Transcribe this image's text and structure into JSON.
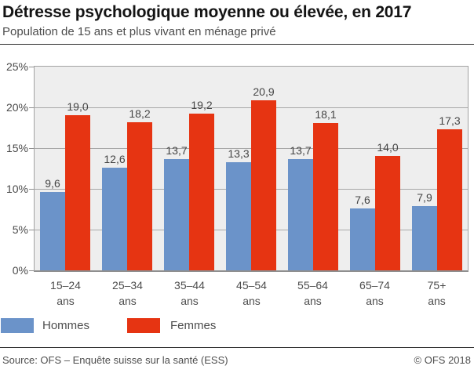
{
  "header": {
    "title": "Détresse psychologique moyenne ou élevée, en 2017",
    "subtitle": "Population de 15 ans et plus vivant en ménage privé"
  },
  "chart_data": {
    "type": "bar",
    "title": "Détresse psychologique moyenne ou élevée, en 2017",
    "subtitle": "Population de 15 ans et plus vivant en ménage privé",
    "categories": [
      "15–24",
      "25–34",
      "35–44",
      "45–54",
      "55–64",
      "65–74",
      "75+"
    ],
    "category_unit": "ans",
    "series": [
      {
        "name": "Hommes",
        "color": "#6b93c9",
        "values": [
          9.6,
          12.6,
          13.7,
          13.3,
          13.7,
          7.6,
          7.9
        ]
      },
      {
        "name": "Femmes",
        "color": "#e63412",
        "values": [
          19.0,
          18.2,
          19.2,
          20.9,
          18.1,
          14.0,
          17.3
        ]
      }
    ],
    "ylim": [
      0,
      25
    ],
    "y_tick_step": 5,
    "y_tick_labels": [
      "0%",
      "5%",
      "10%",
      "15%",
      "20%",
      "25%"
    ],
    "grid": true,
    "value_labels_shown": true,
    "value_label_decimal_separator": ",",
    "legend_position": "bottom",
    "plot_background": "#eeeeee",
    "gridline_color": "#a8a8a8"
  },
  "legend": {
    "items": [
      {
        "label": "Hommes",
        "color": "#6b93c9"
      },
      {
        "label": "Femmes",
        "color": "#e63412"
      }
    ]
  },
  "footer": {
    "source": "Source: OFS – Enquête suisse sur la santé (ESS)",
    "copyright": "© OFS 2018"
  }
}
